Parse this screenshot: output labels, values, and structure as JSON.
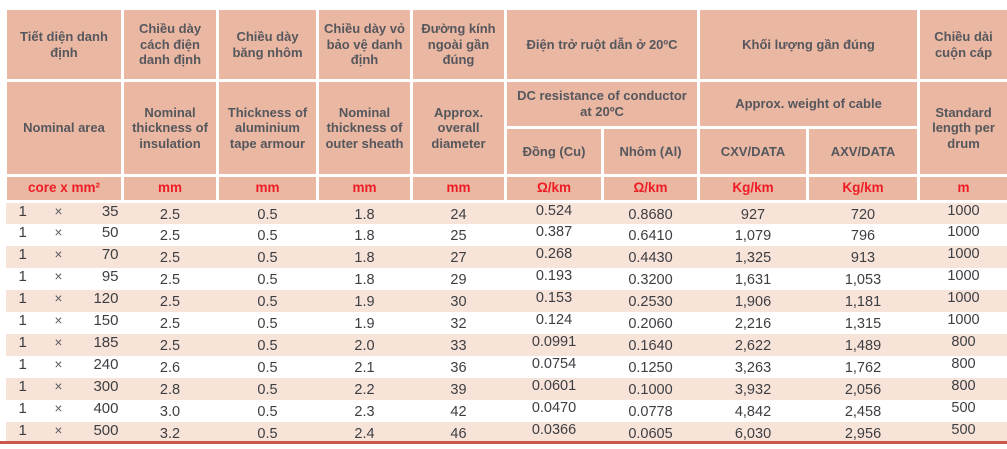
{
  "table": {
    "columns_vn": {
      "area": "Tiết diện danh định",
      "insulation": "Chiều dày cách điện danh định",
      "armour": "Chiều dày băng nhôm",
      "sheath": "Chiều dày vỏ bảo vệ danh định",
      "diameter": "Đường kính ngoài gần đúng",
      "resistance": "Điện trở ruột dẫn ở 20ºC",
      "weight": "Khối lượng gần đúng",
      "drum": "Chiều dài cuộn cáp"
    },
    "columns_en": {
      "area": "Nominal area",
      "insulation": "Nominal thickness of insulation",
      "armour": "Thickness of aluminium tape armour",
      "sheath": "Nominal thickness of outer sheath",
      "diameter": "Approx. overall diameter",
      "resistance": "DC resistance of conductor at 20ºC",
      "weight": "Approx. weight of cable",
      "drum": "Standard length per drum"
    },
    "subcolumns": {
      "cu": "Đồng (Cu)",
      "al": "Nhôm (Al)",
      "cxv": "CXV/DATA",
      "axv": "AXV/DATA"
    },
    "units": {
      "area": "core x mm²",
      "mm": "mm",
      "ohm": "Ω/km",
      "kg": "Kg/km",
      "m": "m"
    },
    "rows": [
      {
        "area": [
          "1",
          "×",
          "35"
        ],
        "cells": [
          "2.5",
          "0.5",
          "1.8",
          "24",
          "0.524",
          "0.8680",
          "927",
          "720",
          "1000"
        ]
      },
      {
        "area": [
          "1",
          "×",
          "50"
        ],
        "cells": [
          "2.5",
          "0.5",
          "1.8",
          "25",
          "0.387",
          "0.6410",
          "1,079",
          "796",
          "1000"
        ]
      },
      {
        "area": [
          "1",
          "×",
          "70"
        ],
        "cells": [
          "2.5",
          "0.5",
          "1.8",
          "27",
          "0.268",
          "0.4430",
          "1,325",
          "913",
          "1000"
        ]
      },
      {
        "area": [
          "1",
          "×",
          "95"
        ],
        "cells": [
          "2.5",
          "0.5",
          "1.8",
          "29",
          "0.193",
          "0.3200",
          "1,631",
          "1,053",
          "1000"
        ]
      },
      {
        "area": [
          "1",
          "×",
          "120"
        ],
        "cells": [
          "2.5",
          "0.5",
          "1.9",
          "30",
          "0.153",
          "0.2530",
          "1,906",
          "1,181",
          "1000"
        ]
      },
      {
        "area": [
          "1",
          "×",
          "150"
        ],
        "cells": [
          "2.5",
          "0.5",
          "1.9",
          "32",
          "0.124",
          "0.2060",
          "2,216",
          "1,315",
          "1000"
        ]
      },
      {
        "area": [
          "1",
          "×",
          "185"
        ],
        "cells": [
          "2.5",
          "0.5",
          "2.0",
          "33",
          "0.0991",
          "0.1640",
          "2,622",
          "1,489",
          "800"
        ]
      },
      {
        "area": [
          "1",
          "×",
          "240"
        ],
        "cells": [
          "2.6",
          "0.5",
          "2.1",
          "36",
          "0.0754",
          "0.1250",
          "3,263",
          "1,762",
          "800"
        ]
      },
      {
        "area": [
          "1",
          "×",
          "300"
        ],
        "cells": [
          "2.8",
          "0.5",
          "2.2",
          "39",
          "0.0601",
          "0.1000",
          "3,932",
          "2,056",
          "800"
        ]
      },
      {
        "area": [
          "1",
          "×",
          "400"
        ],
        "cells": [
          "3.0",
          "0.5",
          "2.3",
          "42",
          "0.0470",
          "0.0778",
          "4,842",
          "2,458",
          "500"
        ]
      },
      {
        "area": [
          "1",
          "×",
          "500"
        ],
        "cells": [
          "3.2",
          "0.5",
          "2.4",
          "46",
          "0.0366",
          "0.0605",
          "6,030",
          "2,956",
          "500"
        ]
      }
    ]
  },
  "colors": {
    "header_bg": "#eab7a3",
    "stripe_bg": "#f8e3d9",
    "header_text": "#55575c",
    "units_text": "#ee1c25",
    "data_text": "#3c3e42",
    "bottom_rule": "#ca574c"
  }
}
